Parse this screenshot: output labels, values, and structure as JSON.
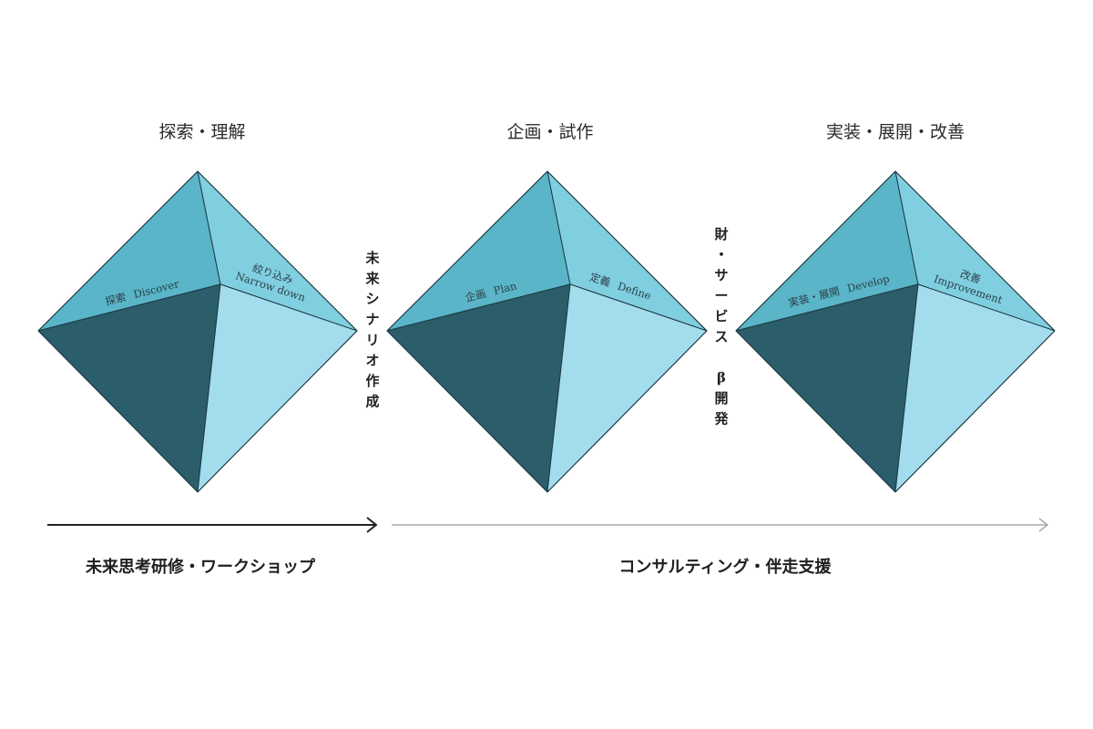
{
  "colors": {
    "facet_top_left": "#5ab5c8",
    "facet_top_right": "#80cfe1",
    "facet_bottom_left": "#2b5d6b",
    "facet_bottom_right": "#a3dcec",
    "edge": "#1d3a44",
    "arrow_strong": "#222222",
    "arrow_light": "#9a9a9a",
    "background": "#ffffff"
  },
  "stages": [
    {
      "heading": "探索・理解",
      "left_label_jp": "探索",
      "left_label_en": "Discover",
      "right_label_jp": "絞り込み",
      "right_label_en": "Narrow down"
    },
    {
      "heading": "企画・試作",
      "left_label_jp": "企画",
      "left_label_en": "Plan",
      "right_label_jp": "定義",
      "right_label_en": "Define"
    },
    {
      "heading": "実装・展開・改善",
      "left_label_jp": "実装・展開",
      "left_label_en": "Develop",
      "right_label_jp": "改善",
      "right_label_en": "Improvement"
    }
  ],
  "connectors": [
    {
      "text": "未来シナリオ作成"
    },
    {
      "text": "財・サービス β開発"
    }
  ],
  "footer": {
    "left_label": "未来思考研修・ワークショップ",
    "right_label": "コンサルティング・伴走支援"
  }
}
